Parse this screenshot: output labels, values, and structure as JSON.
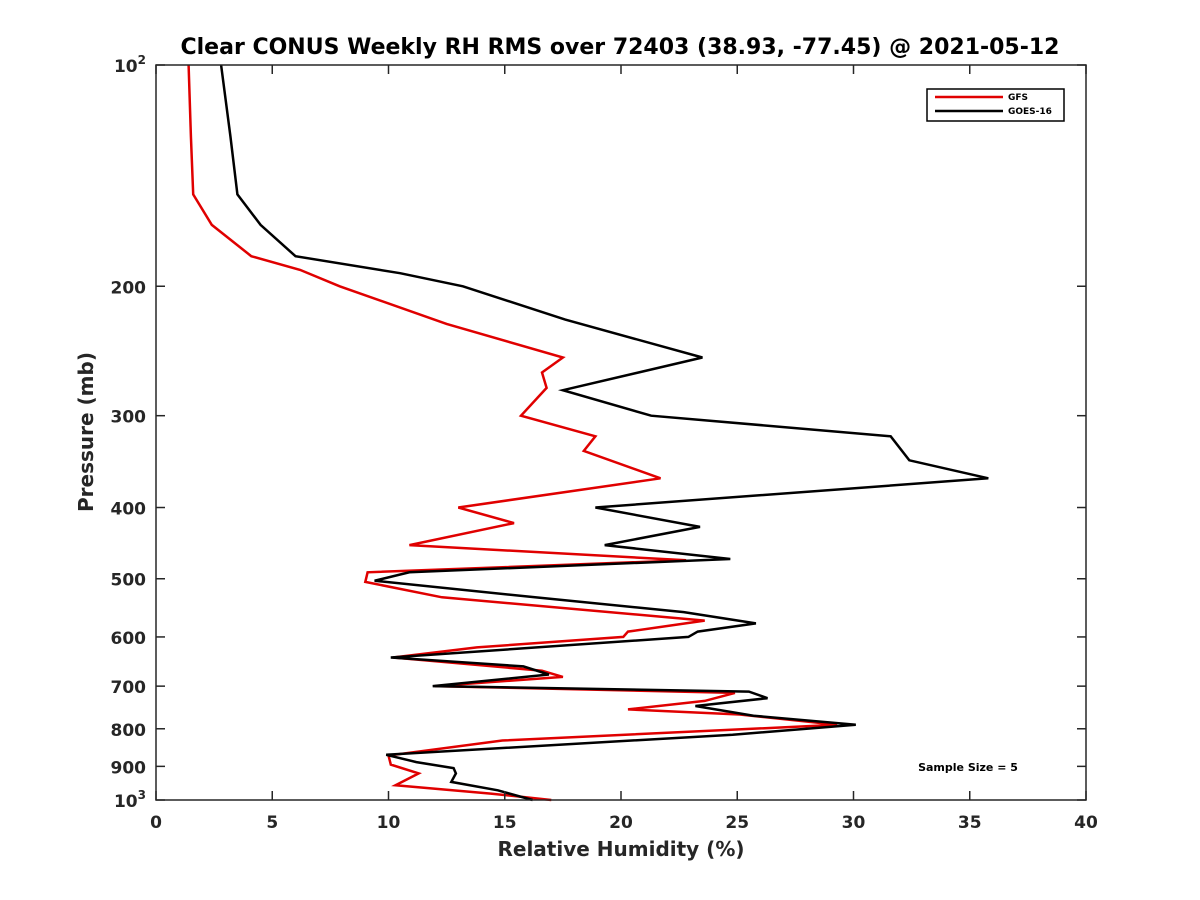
{
  "chart_data": {
    "type": "line",
    "title": "Clear CONUS Weekly RH RMS over 72403 (38.93, -77.45) @ 2021-05-12",
    "xlabel": "Relative Humidity (%)",
    "ylabel": "Pressure (mb)",
    "xlim": [
      0,
      40
    ],
    "ylim": [
      100,
      1000
    ],
    "yscale": "log",
    "y_reversed": true,
    "grid": false,
    "legend_position": "top-right",
    "x_ticks": [
      0,
      5,
      10,
      15,
      20,
      25,
      30,
      35,
      40
    ],
    "y_ticks": [
      {
        "value": 100,
        "label": "10",
        "sup": "2"
      },
      {
        "value": 200,
        "label": "200",
        "sup": ""
      },
      {
        "value": 300,
        "label": "300",
        "sup": ""
      },
      {
        "value": 400,
        "label": "400",
        "sup": ""
      },
      {
        "value": 500,
        "label": "500",
        "sup": ""
      },
      {
        "value": 600,
        "label": "600",
        "sup": ""
      },
      {
        "value": 700,
        "label": "700",
        "sup": ""
      },
      {
        "value": 800,
        "label": "800",
        "sup": ""
      },
      {
        "value": 900,
        "label": "900",
        "sup": ""
      },
      {
        "value": 1000,
        "label": "10",
        "sup": "3"
      }
    ],
    "series": [
      {
        "name": "GFS",
        "color": "#e00000",
        "points": [
          [
            1.4,
            100
          ],
          [
            1.5,
            125
          ],
          [
            1.6,
            150
          ],
          [
            2.4,
            165
          ],
          [
            4.1,
            182
          ],
          [
            6.2,
            190
          ],
          [
            7.9,
            200
          ],
          [
            12.5,
            225
          ],
          [
            17.5,
            250
          ],
          [
            16.6,
            262
          ],
          [
            16.8,
            275
          ],
          [
            15.7,
            300
          ],
          [
            18.9,
            320
          ],
          [
            18.4,
            335
          ],
          [
            21.7,
            365
          ],
          [
            13.0,
            400
          ],
          [
            15.4,
            420
          ],
          [
            10.9,
            450
          ],
          [
            22.8,
            472
          ],
          [
            9.1,
            490
          ],
          [
            9.0,
            505
          ],
          [
            12.3,
            530
          ],
          [
            23.6,
            570
          ],
          [
            20.3,
            590
          ],
          [
            20.1,
            600
          ],
          [
            13.8,
            620
          ],
          [
            10.2,
            640
          ],
          [
            16.6,
            667
          ],
          [
            17.5,
            680
          ],
          [
            12.0,
            700
          ],
          [
            24.9,
            715
          ],
          [
            23.6,
            733
          ],
          [
            20.3,
            753
          ],
          [
            25.1,
            765
          ],
          [
            29.3,
            790
          ],
          [
            14.9,
            830
          ],
          [
            10.0,
            870
          ],
          [
            10.1,
            895
          ],
          [
            11.3,
            920
          ],
          [
            10.3,
            955
          ],
          [
            14.4,
            980
          ],
          [
            17.0,
            1000
          ]
        ]
      },
      {
        "name": "GOES-16",
        "color": "#000000",
        "points": [
          [
            2.8,
            100
          ],
          [
            3.2,
            125
          ],
          [
            3.5,
            150
          ],
          [
            4.5,
            165
          ],
          [
            6.0,
            182
          ],
          [
            10.5,
            192
          ],
          [
            13.2,
            200
          ],
          [
            17.6,
            222
          ],
          [
            23.5,
            250
          ],
          [
            17.5,
            277
          ],
          [
            21.3,
            300
          ],
          [
            31.6,
            320
          ],
          [
            32.4,
            345
          ],
          [
            35.8,
            365
          ],
          [
            18.9,
            400
          ],
          [
            23.4,
            425
          ],
          [
            19.3,
            450
          ],
          [
            24.7,
            470
          ],
          [
            10.9,
            490
          ],
          [
            9.4,
            503
          ],
          [
            16.3,
            530
          ],
          [
            22.7,
            555
          ],
          [
            25.8,
            575
          ],
          [
            23.3,
            590
          ],
          [
            22.9,
            600
          ],
          [
            18.0,
            615
          ],
          [
            10.1,
            640
          ],
          [
            15.8,
            658
          ],
          [
            16.9,
            675
          ],
          [
            11.9,
            700
          ],
          [
            25.5,
            712
          ],
          [
            26.3,
            727
          ],
          [
            23.2,
            745
          ],
          [
            25.7,
            768
          ],
          [
            30.1,
            790
          ],
          [
            24.8,
            815
          ],
          [
            9.9,
            868
          ],
          [
            11.2,
            888
          ],
          [
            12.8,
            905
          ],
          [
            12.9,
            920
          ],
          [
            12.7,
            945
          ],
          [
            14.7,
            970
          ],
          [
            16.2,
            1000
          ]
        ]
      }
    ],
    "annotations": [
      "Sample Size = 5"
    ]
  }
}
